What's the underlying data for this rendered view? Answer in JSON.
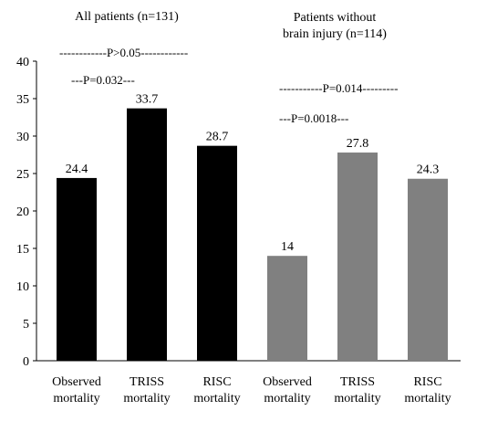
{
  "chart_data": {
    "type": "bar",
    "groups": [
      {
        "title": "All patients (n=131)",
        "title_lines": [
          "All patients (n=131)"
        ],
        "color": "#000000",
        "categories": [
          [
            "Observed",
            "mortality"
          ],
          [
            "TRISS",
            "mortality"
          ],
          [
            "RISC",
            "mortality"
          ]
        ],
        "values": [
          24.4,
          33.7,
          28.7
        ],
        "labels": [
          "24.4",
          "33.7",
          "28.7"
        ]
      },
      {
        "title": "Patients without brain injury (n=114)",
        "title_lines": [
          "Patients without",
          "brain injury (n=114)"
        ],
        "color": "#808080",
        "categories": [
          [
            "Observed",
            "mortality"
          ],
          [
            "TRISS",
            "mortality"
          ],
          [
            "RISC",
            "mortality"
          ]
        ],
        "values": [
          14,
          27.8,
          24.3
        ],
        "labels": [
          "14",
          "27.8",
          "24.3"
        ]
      }
    ],
    "annotations": [
      "------------P>0.05------------",
      "---P=0.032---",
      "-----------P=0.014---------",
      "---P=0.0018---"
    ],
    "ylim": [
      0,
      40
    ],
    "yticks": [
      0,
      5,
      10,
      15,
      20,
      25,
      30,
      35,
      40
    ],
    "grid": false,
    "legend": "none"
  }
}
